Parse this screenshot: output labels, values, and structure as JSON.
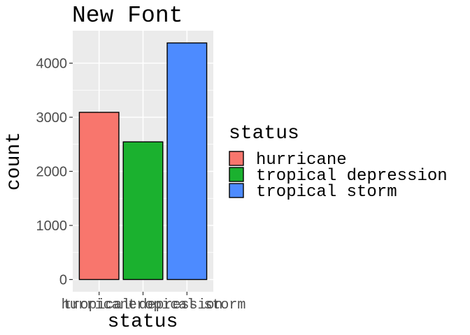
{
  "chart_data": {
    "type": "bar",
    "title": "New Font",
    "xlabel": "status",
    "ylabel": "count",
    "categories": [
      "hurricane",
      "tropical depression",
      "tropical storm"
    ],
    "values": [
      3091,
      2545,
      4374
    ],
    "ylim": [
      0,
      4600
    ],
    "y_ticks": [
      0,
      1000,
      2000,
      3000,
      4000
    ],
    "y_tick_labels": [
      "0",
      "1000",
      "2000",
      "3000",
      "4000"
    ],
    "colors": [
      "#F8766D",
      "#1BB12F",
      "#4D8BFF"
    ],
    "grid": true,
    "legend": {
      "title": "status",
      "placement": "right",
      "entries": [
        "hurricane",
        "tropical depression",
        "tropical storm"
      ]
    }
  }
}
